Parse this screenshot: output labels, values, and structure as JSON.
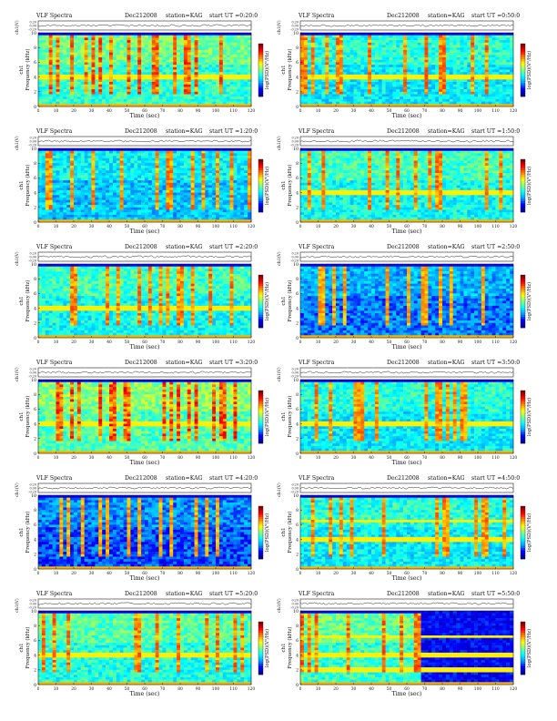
{
  "figure": {
    "panel_title": "VLF Spectra",
    "date": "Dec212008",
    "station": "station=KAG",
    "start_prefix": "start UT =",
    "ch_label": "ch1(V)",
    "volt_ticks": [
      "0.20",
      "0.00",
      "-0.20"
    ],
    "y_axis_label": "Frequency (kHz)",
    "ch_side_label": "ch1",
    "x_axis_label": "Time (sec)",
    "colorbar_label": "log(PSD)(V²/Hz)"
  },
  "panels": [
    {
      "start_time": "0:20:0",
      "activity": 0.62,
      "background": 0.42,
      "horizontal_lines_khz": [
        4.0
      ],
      "dark_section": null
    },
    {
      "start_time": "0:50:0",
      "activity": 0.5,
      "background": 0.35,
      "horizontal_lines_khz": [
        4.0
      ],
      "dark_section": null
    },
    {
      "start_time": "1:20:0",
      "activity": 0.45,
      "background": 0.3,
      "horizontal_lines_khz": [],
      "dark_section": null
    },
    {
      "start_time": "1:50:0",
      "activity": 0.48,
      "background": 0.38,
      "horizontal_lines_khz": [
        4.0
      ],
      "dark_section": null
    },
    {
      "start_time": "2:20:0",
      "activity": 0.5,
      "background": 0.38,
      "horizontal_lines_khz": [
        4.0
      ],
      "dark_section": null
    },
    {
      "start_time": "2:50:0",
      "activity": 0.35,
      "background": 0.22,
      "horizontal_lines_khz": [],
      "dark_section": null
    },
    {
      "start_time": "3:20:0",
      "activity": 0.72,
      "background": 0.45,
      "horizontal_lines_khz": [
        4.0
      ],
      "dark_section": null
    },
    {
      "start_time": "3:50:0",
      "activity": 0.45,
      "background": 0.35,
      "horizontal_lines_khz": [
        4.0
      ],
      "dark_section": null
    },
    {
      "start_time": "4:20:0",
      "activity": 0.38,
      "background": 0.18,
      "horizontal_lines_khz": [],
      "dark_section": null
    },
    {
      "start_time": "4:50:0",
      "activity": 0.45,
      "background": 0.35,
      "horizontal_lines_khz": [
        4.0,
        6.5
      ],
      "dark_section": null
    },
    {
      "start_time": "5:20:0",
      "activity": 0.5,
      "background": 0.4,
      "horizontal_lines_khz": [
        4.0
      ],
      "dark_section": null
    },
    {
      "start_time": "5:50:0",
      "activity": 0.55,
      "background": 0.42,
      "horizontal_lines_khz": [
        2.0,
        4.0,
        6.5
      ],
      "dark_section": [
        68,
        120
      ]
    }
  ],
  "chart_data": {
    "type": "heatmap",
    "title": "VLF Spectra",
    "xlabel": "Time (sec)",
    "ylabel": "Frequency (kHz)",
    "x_ticks": [
      0,
      10,
      20,
      30,
      40,
      50,
      60,
      70,
      80,
      90,
      100,
      110,
      120
    ],
    "y_ticks": [
      0,
      2,
      4,
      6,
      8,
      10
    ],
    "xlim": [
      0,
      120
    ],
    "ylim": [
      0,
      10
    ],
    "colormap": "jet",
    "colormap_stops": [
      "#000090",
      "#0000ff",
      "#00a0ff",
      "#00ffff",
      "#7fff7f",
      "#ffff00",
      "#ff8000",
      "#ff0000",
      "#800000"
    ],
    "grid": false,
    "legend": "colorbar right"
  }
}
